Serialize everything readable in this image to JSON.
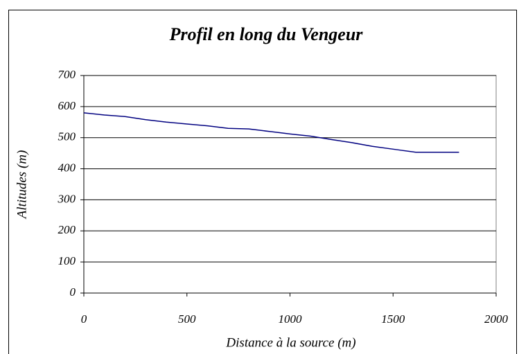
{
  "chart_data": {
    "type": "line",
    "title": "Profil en long du Vengeur",
    "xlabel": "Distance à la source (m)",
    "ylabel": "Altitudes (m)",
    "x": [
      0,
      100,
      200,
      300,
      400,
      500,
      600,
      700,
      800,
      900,
      950,
      1000,
      1100,
      1200,
      1300,
      1400,
      1500,
      1610,
      1700,
      1820
    ],
    "values": [
      580,
      573,
      568,
      558,
      550,
      544,
      538,
      530,
      528,
      520,
      516,
      512,
      505,
      494,
      484,
      472,
      463,
      453,
      453,
      453
    ],
    "color": "#000080",
    "xlim": [
      0,
      2000
    ],
    "xticks": [
      0,
      500,
      1000,
      1500,
      2000
    ],
    "ylim": [
      0,
      700
    ],
    "yticks": [
      0,
      100,
      200,
      300,
      400,
      500,
      600,
      700
    ],
    "grid": true
  }
}
